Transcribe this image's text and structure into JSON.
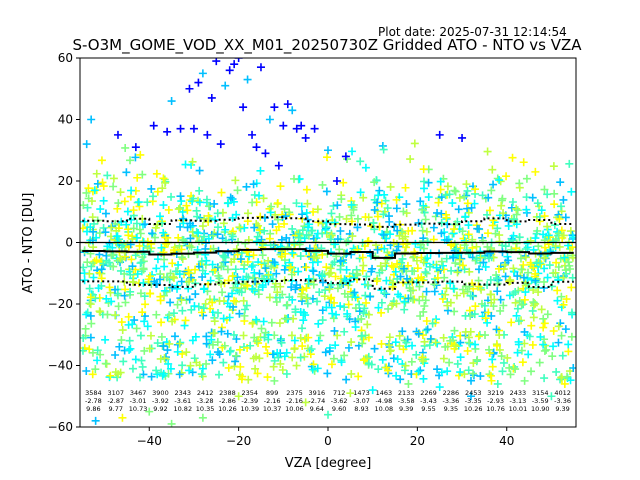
{
  "plot_date": "Plot date: 2025-07-31 12:14:54",
  "chart_data": {
    "type": "scatter",
    "title": "S-O3M_GOME_VOD_XX_M01_20250730Z Gridded ATO - NTO vs VZA",
    "xlabel": "VZA [degree]",
    "ylabel": "ATO - NTO [DU]",
    "xlim": [
      -55.5,
      55.5
    ],
    "ylim": [
      -60,
      60
    ],
    "xticks": [
      -40,
      -20,
      0,
      20,
      40
    ],
    "yticks": [
      -60,
      -40,
      -20,
      0,
      20,
      40,
      60
    ],
    "grid": false,
    "legend": "none",
    "marker": "+",
    "colors": [
      "#00ffff",
      "#40ffbf",
      "#80ff80",
      "#bfff40",
      "#ffff00",
      "#00bfff",
      "#ffbf00",
      "#0000ff"
    ],
    "zero_line": 0,
    "bins": [
      {
        "x": -52.5,
        "count": "3584",
        "mean": "-2.78",
        "std": "9.86"
      },
      {
        "x": -47.5,
        "count": "3107",
        "mean": "-2.87",
        "std": "9.77"
      },
      {
        "x": -42.5,
        "count": "3467",
        "mean": "-3.01",
        "std": "10.73"
      },
      {
        "x": -37.5,
        "count": "3900",
        "mean": "-3.92",
        "std": "9.92"
      },
      {
        "x": -32.5,
        "count": "2343",
        "mean": "-3.61",
        "std": "10.82"
      },
      {
        "x": -27.5,
        "count": "2412",
        "mean": "-3.28",
        "std": "10.35"
      },
      {
        "x": -22.5,
        "count": "2388",
        "mean": "-2.86",
        "std": "10.26"
      },
      {
        "x": -17.5,
        "count": "2354",
        "mean": "-2.39",
        "std": "10.39"
      },
      {
        "x": -12.5,
        "count": "899",
        "mean": "-2.16",
        "std": "10.37"
      },
      {
        "x": -7.5,
        "count": "2375",
        "mean": "-2.16",
        "std": "10.06"
      },
      {
        "x": -2.5,
        "count": "3916",
        "mean": "-2.74",
        "std": "9.64"
      },
      {
        "x": 2.5,
        "count": "712",
        "mean": "-3.62",
        "std": "9.60"
      },
      {
        "x": 7.5,
        "count": "1473",
        "mean": "-3.07",
        "std": "8.93"
      },
      {
        "x": 12.5,
        "count": "1463",
        "mean": "-4.98",
        "std": "10.08"
      },
      {
        "x": 17.5,
        "count": "2133",
        "mean": "-3.58",
        "std": "9.39"
      },
      {
        "x": 22.5,
        "count": "2269",
        "mean": "-3.43",
        "std": "9.55"
      },
      {
        "x": 27.5,
        "count": "2286",
        "mean": "-3.36",
        "std": "9.35"
      },
      {
        "x": 32.5,
        "count": "2453",
        "mean": "-3.35",
        "std": "10.26"
      },
      {
        "x": 37.5,
        "count": "3219",
        "mean": "-2.93",
        "std": "10.76"
      },
      {
        "x": 42.5,
        "count": "2433",
        "mean": "-3.13",
        "std": "10.01"
      },
      {
        "x": 47.5,
        "count": "3154",
        "mean": "-3.59",
        "std": "10.90"
      },
      {
        "x": 52.5,
        "count": "4012",
        "mean": "-3.36",
        "std": "9.39"
      }
    ],
    "scatter_summary": {
      "bulk_range": [
        -35,
        25
      ],
      "points_per_bin": 90
    },
    "outliers": [
      [
        -53,
        40
      ],
      [
        -47,
        35
      ],
      [
        -43,
        31
      ],
      [
        -39,
        38
      ],
      [
        -36,
        36
      ],
      [
        -35,
        46
      ],
      [
        -33,
        37
      ],
      [
        -31,
        50
      ],
      [
        -30,
        37
      ],
      [
        -29,
        52
      ],
      [
        -28,
        55
      ],
      [
        -27,
        35
      ],
      [
        -26,
        47
      ],
      [
        -25,
        59
      ],
      [
        -24,
        32
      ],
      [
        -23,
        51
      ],
      [
        -22,
        56
      ],
      [
        -21,
        58
      ],
      [
        -20,
        60
      ],
      [
        -19,
        44
      ],
      [
        -18,
        53
      ],
      [
        -17,
        35
      ],
      [
        -16,
        31
      ],
      [
        -15,
        57
      ],
      [
        -14,
        29
      ],
      [
        -13,
        40
      ],
      [
        -12,
        44
      ],
      [
        -11,
        25
      ],
      [
        -10,
        38
      ],
      [
        -9,
        45
      ],
      [
        -8,
        43
      ],
      [
        -7,
        37
      ],
      [
        -6,
        38
      ],
      [
        -5,
        34
      ],
      [
        -3,
        37
      ],
      [
        0,
        30
      ],
      [
        2,
        20
      ],
      [
        4,
        28
      ],
      [
        30,
        34
      ],
      [
        25,
        35
      ],
      [
        -54,
        32
      ]
    ],
    "low_outliers": [
      [
        -52,
        -58
      ],
      [
        -46,
        -57
      ],
      [
        -40,
        -55
      ],
      [
        -35,
        -59
      ],
      [
        -28,
        -57
      ],
      [
        -20,
        -50
      ],
      [
        -12,
        -45
      ],
      [
        -5,
        -52
      ],
      [
        0,
        -56
      ],
      [
        5,
        -49
      ],
      [
        10,
        -48
      ],
      [
        18,
        -46
      ],
      [
        25,
        -47
      ],
      [
        32,
        -50
      ],
      [
        38,
        -46
      ],
      [
        44,
        -45
      ],
      [
        50,
        -50
      ],
      [
        53,
        -46
      ]
    ]
  }
}
